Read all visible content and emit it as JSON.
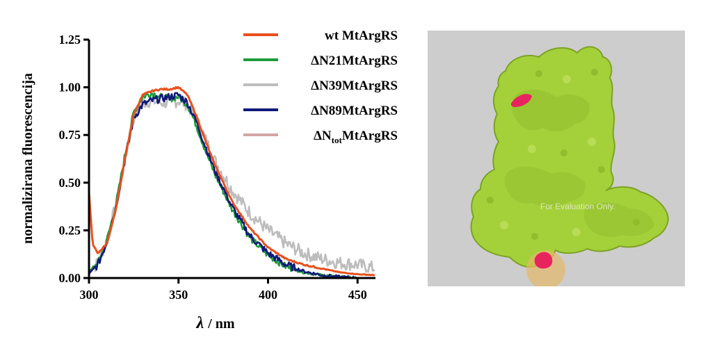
{
  "chart_data": {
    "type": "line",
    "xlabel_symbol": "λ",
    "xlabel_unit": "/ nm",
    "ylabel": "normalizirana fluorescencija",
    "xlim": [
      300,
      460
    ],
    "ylim": [
      0,
      1.25
    ],
    "x_ticks": [
      "300",
      "350",
      "400",
      "450"
    ],
    "y_ticks": [
      "0.00",
      "0.25",
      "0.50",
      "0.75",
      "1.00",
      "1.25"
    ],
    "legend_position": "top-right",
    "series": [
      {
        "name": "wt MtArgRS",
        "color": "#e8501e",
        "noise": 0.004,
        "x": [
          300,
          302,
          305,
          310,
          315,
          320,
          325,
          330,
          335,
          340,
          345,
          350,
          355,
          360,
          365,
          370,
          380,
          390,
          400,
          410,
          420,
          430,
          440,
          450,
          460
        ],
        "y": [
          0.45,
          0.18,
          0.13,
          0.18,
          0.36,
          0.62,
          0.86,
          0.96,
          0.98,
          0.99,
          0.99,
          1.0,
          0.96,
          0.85,
          0.72,
          0.6,
          0.4,
          0.26,
          0.16,
          0.1,
          0.07,
          0.05,
          0.03,
          0.02,
          0.015
        ]
      },
      {
        "name": "ΔN21MtArgRS",
        "color": "#1e9c3c",
        "noise": 0.018,
        "x": [
          300,
          305,
          310,
          315,
          320,
          325,
          330,
          335,
          340,
          345,
          350,
          355,
          360,
          365,
          370,
          380,
          390,
          400,
          410,
          420,
          430,
          440,
          450
        ],
        "y": [
          0.03,
          0.08,
          0.2,
          0.38,
          0.64,
          0.87,
          0.95,
          0.97,
          0.95,
          0.94,
          0.95,
          0.91,
          0.8,
          0.67,
          0.55,
          0.36,
          0.21,
          0.12,
          0.06,
          0.03,
          0.015,
          0.005,
          0.0
        ]
      },
      {
        "name": "ΔN39MtArgRS",
        "color": "#bdbdbd",
        "noise": 0.035,
        "x": [
          300,
          305,
          310,
          315,
          320,
          325,
          330,
          335,
          340,
          345,
          350,
          355,
          360,
          365,
          370,
          380,
          390,
          400,
          410,
          420,
          430,
          440,
          450,
          455,
          460
        ],
        "y": [
          0.03,
          0.08,
          0.2,
          0.38,
          0.62,
          0.84,
          0.92,
          0.93,
          0.92,
          0.92,
          0.93,
          0.91,
          0.83,
          0.73,
          0.62,
          0.46,
          0.34,
          0.25,
          0.18,
          0.13,
          0.1,
          0.08,
          0.07,
          0.06,
          0.05
        ]
      },
      {
        "name": "ΔN89MtArgRS",
        "color": "#10197a",
        "noise": 0.02,
        "x": [
          300,
          305,
          310,
          315,
          320,
          325,
          330,
          335,
          340,
          345,
          350,
          355,
          360,
          365,
          370,
          380,
          390,
          400,
          410,
          420,
          430,
          440,
          450
        ],
        "y": [
          0.02,
          0.07,
          0.19,
          0.37,
          0.62,
          0.84,
          0.91,
          0.93,
          0.94,
          0.95,
          0.96,
          0.92,
          0.82,
          0.69,
          0.57,
          0.37,
          0.22,
          0.13,
          0.07,
          0.035,
          0.015,
          0.005,
          0.0
        ]
      },
      {
        "name_prefix": "ΔN",
        "name_subscript": "tot",
        "name_suffix": "MtArgRS",
        "color": "#d4a5a5",
        "noise": 0.0,
        "x": [],
        "y": []
      }
    ]
  },
  "protein_image": {
    "background": "#cdcdcd",
    "surface_color": "#a4d13a",
    "shadow_color": "#7da224",
    "highlight_color": "#e8245f",
    "circle_color": "#e6b86a",
    "watermark": "For Evaluation Only."
  }
}
